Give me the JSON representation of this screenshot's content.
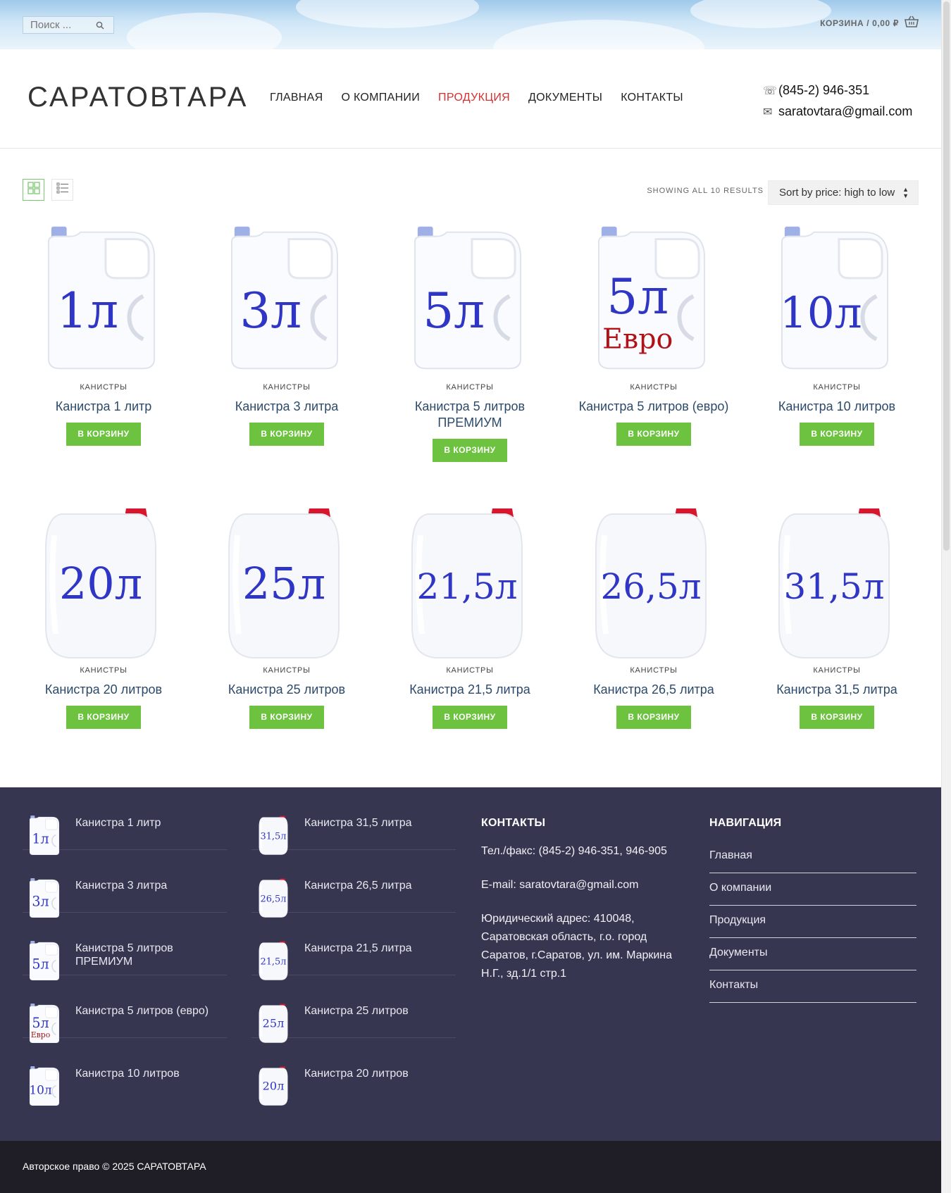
{
  "topbar": {
    "search_placeholder": "Поиск ...",
    "cart_label": "КОРЗИНА / 0,00 ₽"
  },
  "header": {
    "brand": "САРАТОВТАРА",
    "nav": [
      "ГЛАВНАЯ",
      "О КОМПАНИИ",
      "ПРОДУКЦИЯ",
      "ДОКУМЕНТЫ",
      "КОНТАКТЫ"
    ],
    "active_nav": "ПРОДУКЦИЯ",
    "phone": "(845-2) 946-351",
    "email": "saratovtara@gmail.com"
  },
  "toolbar": {
    "results": "SHOWING ALL 10 RESULTS",
    "sort_value": "Sort by price: high to low"
  },
  "products": [
    {
      "category": "КАНИСТРЫ",
      "name": "Канистра 1 литр",
      "label": "1л",
      "sub": "",
      "button": "В КОРЗИНУ"
    },
    {
      "category": "КАНИСТРЫ",
      "name": "Канистра 3 литра",
      "label": "3л",
      "sub": "",
      "button": "В КОРЗИНУ"
    },
    {
      "category": "КАНИСТРЫ",
      "name": "Канистра 5 литров ПРЕМИУМ",
      "label": "5л",
      "sub": "",
      "button": "В КОРЗИНУ"
    },
    {
      "category": "КАНИСТРЫ",
      "name": "Канистра 5 литров (евро)",
      "label": "5л",
      "sub": "Евро",
      "button": "В КОРЗИНУ"
    },
    {
      "category": "КАНИСТРЫ",
      "name": "Канистра 10 литров",
      "label": "10л",
      "sub": "",
      "button": "В КОРЗИНУ"
    },
    {
      "category": "КАНИСТРЫ",
      "name": "Канистра 20 литров",
      "label": "20л",
      "sub": "",
      "button": "В КОРЗИНУ"
    },
    {
      "category": "КАНИСТРЫ",
      "name": "Канистра 25 литров",
      "label": "25л",
      "sub": "",
      "button": "В КОРЗИНУ"
    },
    {
      "category": "КАНИСТРЫ",
      "name": "Канистра 21,5 литра",
      "label": "21,5л",
      "sub": "",
      "button": "В КОРЗИНУ"
    },
    {
      "category": "КАНИСТРЫ",
      "name": "Канистра 26,5 литра",
      "label": "26,5л",
      "sub": "",
      "button": "В КОРЗИНУ"
    },
    {
      "category": "КАНИСТРЫ",
      "name": "Канистра 31,5 литра",
      "label": "31,5л",
      "sub": "",
      "button": "В КОРЗИНУ"
    }
  ],
  "footer": {
    "widget1": [
      {
        "name": "Канистра 1 литр",
        "label": "1л",
        "sub": ""
      },
      {
        "name": "Канистра 3 литра",
        "label": "3л",
        "sub": ""
      },
      {
        "name": "Канистра 5 литров ПРЕМИУМ",
        "label": "5л",
        "sub": ""
      },
      {
        "name": "Канистра 5 литров (евро)",
        "label": "5л",
        "sub": "Евро"
      },
      {
        "name": "Канистра 10 литров",
        "label": "10л",
        "sub": ""
      }
    ],
    "widget2": [
      {
        "name": "Канистра 31,5 литра",
        "label": "31,5л",
        "sub": ""
      },
      {
        "name": "Канистра 26,5 литра",
        "label": "26,5л",
        "sub": ""
      },
      {
        "name": "Канистра 21,5 литра",
        "label": "21,5л",
        "sub": ""
      },
      {
        "name": "Канистра 25 литров",
        "label": "25л",
        "sub": ""
      },
      {
        "name": "Канистра 20 литров",
        "label": "20л",
        "sub": ""
      }
    ],
    "contacts_title": "КОНТАКТЫ",
    "phone_line": "Тел./факс: (845-2) 946-351, 946-905",
    "email_label": "E-mail:",
    "email": "saratovtara@gmail.com",
    "address": "Юридический адрес: 410048, Саратовская область, г.о. город Саратов, г.Саратов, ул. им. Маркина Н.Г., зд.1/1 стр.1",
    "nav_title": "НАВИГАЦИЯ",
    "nav": [
      "Главная",
      "О компании",
      "Продукция",
      "Документы",
      "Контакты"
    ]
  },
  "copyright": "Авторское право © 2025 САРАТОВТАРА",
  "colors": {
    "accent_red": "#d63031",
    "button_green": "#6dc340",
    "footer_bg": "#363651",
    "label_blue": "#2f35c4",
    "label_red": "#b01217"
  }
}
